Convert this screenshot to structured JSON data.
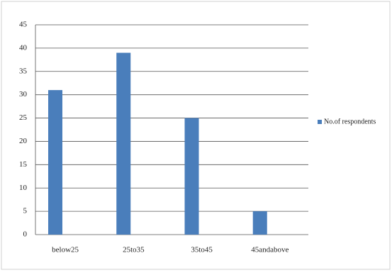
{
  "chart_data": {
    "type": "bar",
    "categories": [
      "below25",
      "25to35",
      "35to45",
      "45andabove"
    ],
    "series": [
      {
        "name": "No.of respondents",
        "color": "#4a7ebb",
        "values": [
          31,
          39,
          25,
          5
        ]
      }
    ],
    "ylim": [
      0,
      45
    ],
    "yticks": [
      0,
      5,
      10,
      15,
      20,
      25,
      30,
      35,
      40,
      45
    ],
    "grid": true,
    "legend": "right"
  }
}
